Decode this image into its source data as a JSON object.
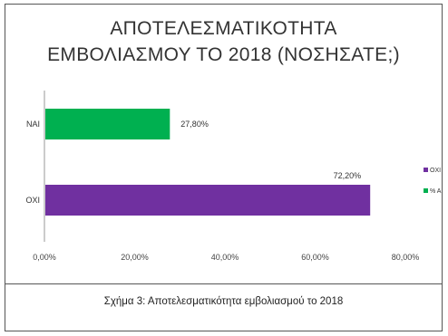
{
  "chart_data": {
    "type": "bar",
    "orientation": "horizontal",
    "title": [
      "ΑΠΟΤΕΛΕΣΜΑΤΙΚΟΤΗΤΑ",
      "ΕΜΒΟΛΙΑΣΜΟΥ ΤΟ 2018 (ΝΟΣΗΣΑΤΕ;)"
    ],
    "categories": [
      "ΝΑΙ",
      "ΟΧΙ"
    ],
    "series": [
      {
        "name": "ΟΧΙ",
        "values": [
          null,
          72.2
        ],
        "color": "#7030a0"
      },
      {
        "name": "ΝΑΙ",
        "values": [
          27.8,
          null
        ],
        "color": "#00b050"
      }
    ],
    "value_labels": [
      "27,80%",
      "72,20%"
    ],
    "xlim": [
      0,
      80
    ],
    "xticks": [
      0,
      20,
      40,
      60,
      80
    ],
    "xtick_labels": [
      "0,00%",
      "20,00%",
      "40,00%",
      "60,00%",
      "80,00%"
    ],
    "legend_labels": [
      "ΟΧΙ",
      "% ΑΙ"
    ],
    "legend_position": "right",
    "grid": false
  },
  "caption": "Σχήμα 3: Αποτελεσματικότητα εμβολιασμού το 2018"
}
